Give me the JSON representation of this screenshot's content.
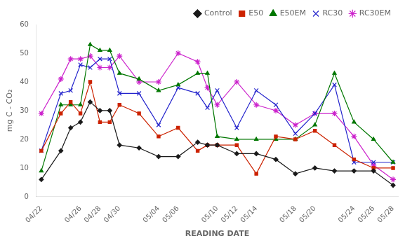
{
  "chart_data": {
    "type": "line",
    "xlabel": "READING DATE",
    "ylabel": "mg C - CO₂",
    "categories": [
      "04/22",
      null,
      null,
      null,
      "04/26",
      null,
      "04/28",
      null,
      "04/30",
      null,
      null,
      null,
      "05/04",
      null,
      "05/06",
      null,
      null,
      null,
      "05/10",
      null,
      "05/12",
      null,
      "05/14",
      null,
      null,
      null,
      "05/18",
      null,
      "05/20",
      null,
      null,
      null,
      "05/24",
      null,
      "05/26",
      null,
      "05/28"
    ],
    "series": [
      {
        "name": "Control",
        "color": "#1a1a1a",
        "marker": "diamond",
        "values": [
          6,
          null,
          16,
          24,
          26,
          33,
          30,
          30,
          18,
          null,
          17,
          null,
          14,
          null,
          14,
          null,
          19,
          18,
          18,
          null,
          15,
          null,
          15,
          null,
          13,
          null,
          8,
          null,
          10,
          null,
          9,
          null,
          9,
          null,
          9,
          null,
          4
        ]
      },
      {
        "name": "E50",
        "color": "#cc2200",
        "marker": "square",
        "values": [
          16,
          null,
          29,
          33,
          29,
          40,
          26,
          26,
          32,
          null,
          29,
          null,
          21,
          null,
          24,
          null,
          16,
          18,
          18,
          null,
          18,
          null,
          8,
          null,
          21,
          null,
          20,
          null,
          23,
          null,
          18,
          null,
          13,
          null,
          10,
          null,
          10
        ]
      },
      {
        "name": "E50EM",
        "color": "#007700",
        "marker": "triangle",
        "values": [
          9,
          null,
          32,
          32,
          32,
          53,
          51,
          51,
          43,
          null,
          41,
          null,
          37,
          null,
          39,
          null,
          43,
          43,
          21,
          null,
          20,
          null,
          20,
          null,
          20,
          null,
          20,
          null,
          25,
          null,
          43,
          null,
          26,
          null,
          20,
          null,
          12
        ]
      },
      {
        "name": "RC30",
        "color": "#2222cc",
        "marker": "x",
        "values": [
          16,
          null,
          36,
          37,
          46,
          45,
          48,
          48,
          36,
          null,
          36,
          null,
          25,
          null,
          38,
          null,
          36,
          31,
          37,
          null,
          24,
          null,
          37,
          null,
          32,
          null,
          22,
          null,
          29,
          null,
          39,
          null,
          12,
          null,
          12,
          null,
          12
        ]
      },
      {
        "name": "RC30EM",
        "color": "#cc22cc",
        "marker": "star",
        "values": [
          29,
          null,
          41,
          48,
          48,
          49,
          45,
          45,
          49,
          null,
          40,
          null,
          40,
          null,
          50,
          null,
          47,
          38,
          32,
          null,
          40,
          null,
          32,
          null,
          30,
          null,
          25,
          null,
          29,
          null,
          29,
          null,
          21,
          null,
          11,
          null,
          6
        ]
      }
    ],
    "ylim": [
      0,
      60
    ],
    "yticks": [
      0,
      10,
      20,
      30,
      40,
      50,
      60
    ],
    "grid": false,
    "legend": "upper right"
  }
}
